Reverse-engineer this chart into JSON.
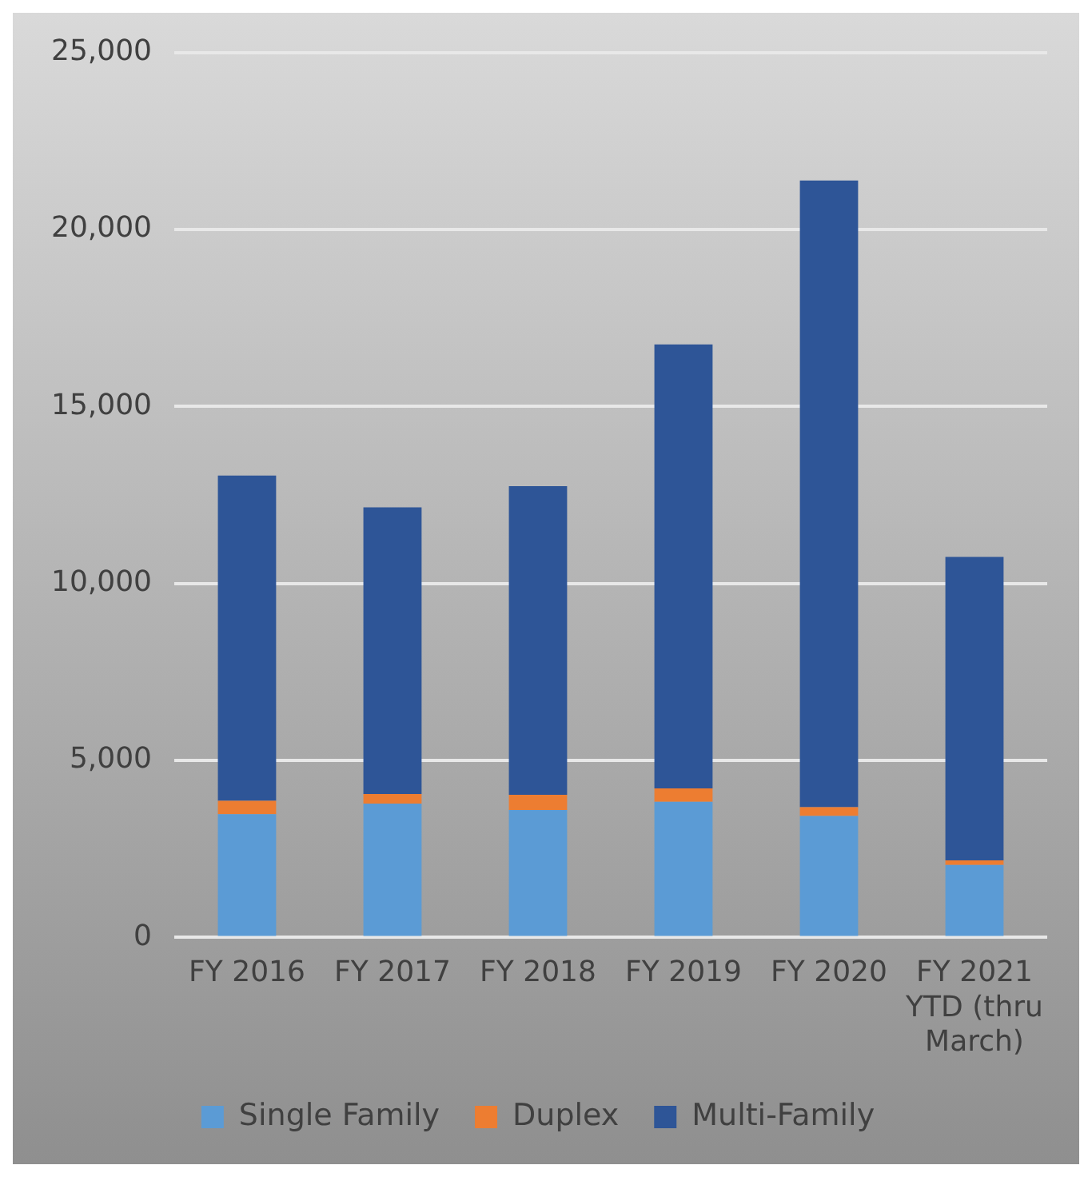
{
  "chart_data": {
    "type": "bar",
    "stacked": true,
    "categories": [
      "FY 2016",
      "FY 2017",
      "FY 2018",
      "FY 2019",
      "FY 2020",
      "FY 2021 YTD (thru March)"
    ],
    "series": [
      {
        "name": "Single Family",
        "color": "#5b9bd5",
        "values": [
          3480,
          3780,
          3600,
          3830,
          3430,
          2050
        ]
      },
      {
        "name": "Duplex",
        "color": "#ed7d31",
        "values": [
          380,
          270,
          430,
          380,
          250,
          130
        ]
      },
      {
        "name": "Multi-Family",
        "color": "#2e5597",
        "values": [
          9190,
          8100,
          8720,
          12540,
          17700,
          8570
        ]
      }
    ],
    "ylim": [
      0,
      25000
    ],
    "yticks": [
      {
        "value": 0,
        "label": "0"
      },
      {
        "value": 5000,
        "label": "5,000"
      },
      {
        "value": 10000,
        "label": "10,000"
      },
      {
        "value": 15000,
        "label": "15,000"
      },
      {
        "value": 20000,
        "label": "20,000"
      },
      {
        "value": 25000,
        "label": "25,000"
      }
    ],
    "grid": "y",
    "legend": "bottom"
  }
}
